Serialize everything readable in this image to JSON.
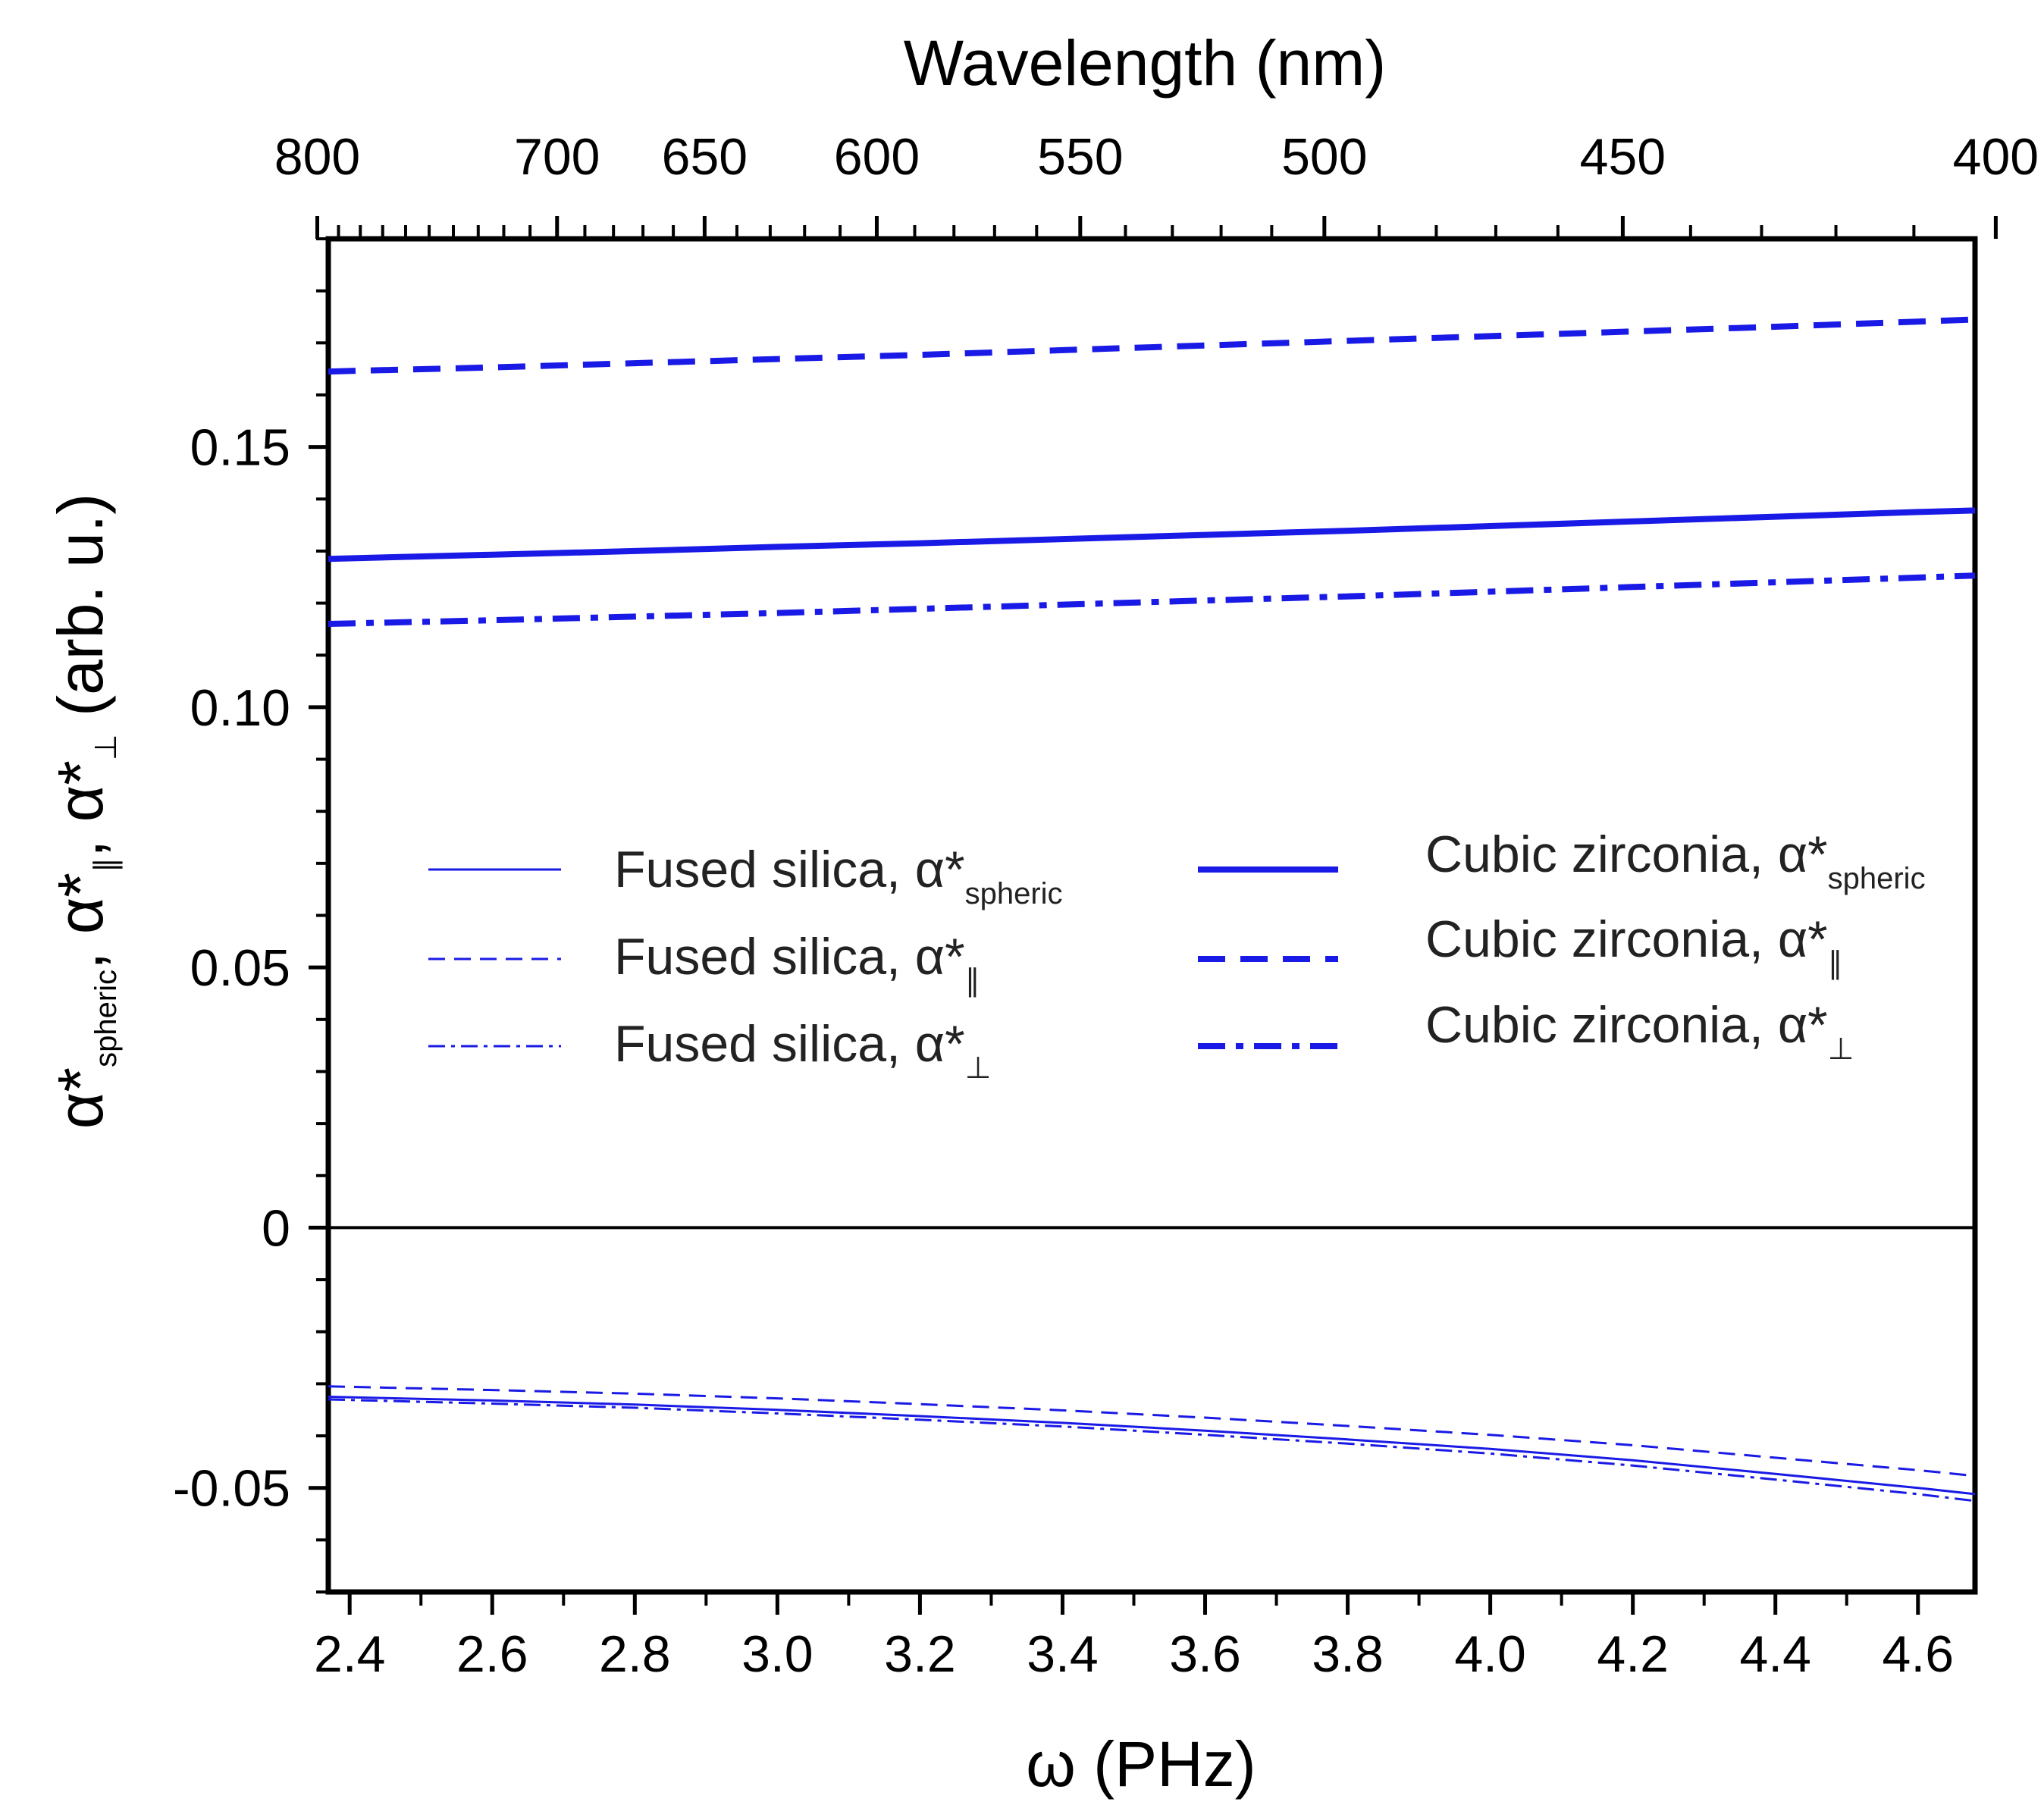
{
  "chart_data": {
    "type": "line",
    "title": "",
    "xlabel": "ω (PHz)",
    "x2label": "Wavelength (nm)",
    "ylabel": {
      "prefix1": "α*",
      "sub1": "spheric",
      "sep1": ", ",
      "prefix2": "α*",
      "sub2": "∥",
      "sep2": ", ",
      "prefix3": "α*",
      "sub3": "⊥",
      "suffix": " (arb. u.)"
    },
    "xlim": [
      2.37,
      4.68
    ],
    "ylim": [
      -0.07,
      0.19
    ],
    "xticks": [
      2.4,
      2.6,
      2.8,
      3.0,
      3.2,
      3.4,
      3.6,
      3.8,
      4.0,
      4.2,
      4.4,
      4.6
    ],
    "xtick_labels": [
      "2.4",
      "2.6",
      "2.8",
      "3.0",
      "3.2",
      "3.4",
      "3.6",
      "3.8",
      "4.0",
      "4.2",
      "4.4",
      "4.6"
    ],
    "yticks": [
      -0.05,
      0,
      0.05,
      0.1,
      0.15
    ],
    "ytick_labels": [
      "-0.05",
      "0",
      "0.05",
      "0.10",
      "0.15"
    ],
    "x2ticks": [
      800,
      700,
      650,
      600,
      550,
      500,
      450,
      400
    ],
    "x2tick_labels": [
      "800",
      "700",
      "650",
      "600",
      "550",
      "500",
      "450",
      "400"
    ],
    "x": [
      2.37,
      2.6,
      2.8,
      3.0,
      3.2,
      3.4,
      3.6,
      3.8,
      4.0,
      4.2,
      4.4,
      4.6,
      4.68
    ],
    "series": [
      {
        "name": "Fused silica, α*spheric",
        "name_main": "Fused silica, α*",
        "name_sub": "spheric",
        "style": "thin-solid",
        "color": "#1a1ae6",
        "values": [
          -0.0325,
          -0.0332,
          -0.034,
          -0.035,
          -0.0362,
          -0.0375,
          -0.039,
          -0.0407,
          -0.0425,
          -0.0447,
          -0.0473,
          -0.05,
          -0.0512
        ]
      },
      {
        "name": "Fused silica, α*∥",
        "name_main": "Fused silica, α*",
        "name_sub": "∥",
        "style": "thin-dash",
        "color": "#1a1ae6",
        "values": [
          -0.0305,
          -0.0312,
          -0.0319,
          -0.0328,
          -0.0339,
          -0.0351,
          -0.0365,
          -0.0381,
          -0.0398,
          -0.0418,
          -0.0442,
          -0.0466,
          -0.0477
        ]
      },
      {
        "name": "Fused silica, α*⊥",
        "name_main": "Fused silica, α*",
        "name_sub": "⊥",
        "style": "thin-dashdot",
        "color": "#1a1ae6",
        "values": [
          -0.033,
          -0.0338,
          -0.0346,
          -0.0357,
          -0.0369,
          -0.0382,
          -0.0398,
          -0.0415,
          -0.0434,
          -0.0457,
          -0.0484,
          -0.0512,
          -0.0525
        ]
      },
      {
        "name": "Cubic zirconia, α*spheric",
        "name_main": "Cubic zirconia, α*",
        "name_sub": "spheric",
        "style": "thick-solid",
        "color": "#1a1ae6",
        "values": [
          0.1285,
          0.1293,
          0.13,
          0.1308,
          0.1315,
          0.1323,
          0.1331,
          0.1339,
          0.1348,
          0.1357,
          0.1366,
          0.1375,
          0.1378
        ]
      },
      {
        "name": "Cubic zirconia, α*∥",
        "name_main": "Cubic zirconia, α*",
        "name_sub": "∥",
        "style": "thick-dash",
        "color": "#1a1ae6",
        "values": [
          0.1645,
          0.1653,
          0.1661,
          0.1669,
          0.1677,
          0.1686,
          0.1695,
          0.1704,
          0.1713,
          0.1722,
          0.1731,
          0.1741,
          0.1745
        ]
      },
      {
        "name": "Cubic zirconia, α*⊥",
        "name_main": "Cubic zirconia, α*",
        "name_sub": "⊥",
        "style": "thick-dashdot",
        "color": "#1a1ae6",
        "values": [
          0.116,
          0.1167,
          0.1174,
          0.1181,
          0.1189,
          0.1197,
          0.1205,
          0.1213,
          0.1222,
          0.1231,
          0.124,
          0.1249,
          0.1253
        ]
      }
    ],
    "zero_line": true,
    "grid": false,
    "legend": "center"
  }
}
